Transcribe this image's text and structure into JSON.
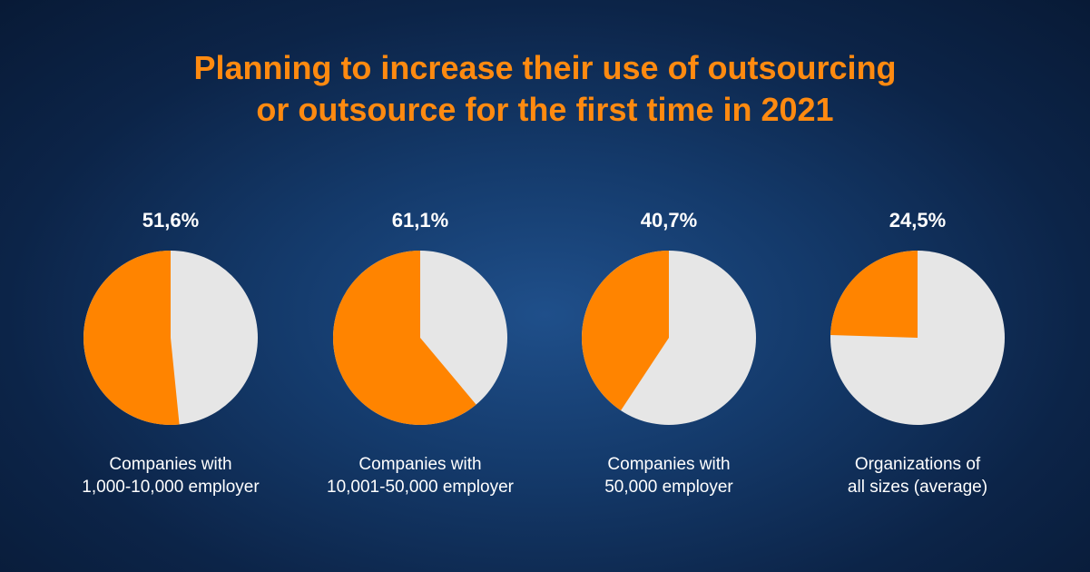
{
  "title": {
    "line1": "Planning to increase their use of outsourcing",
    "line2": "or outsource for the first time in 2021"
  },
  "colors": {
    "highlight": "#ff8400",
    "remainder": "#e6e6e6"
  },
  "chart_data": [
    {
      "type": "pie",
      "title": "51,6%",
      "value": 51.6,
      "label_line1": "Companies with",
      "label_line2": "1,000-10,000 employer"
    },
    {
      "type": "pie",
      "title": "61,1%",
      "value": 61.1,
      "label_line1": "Companies with",
      "label_line2": "10,001-50,000 employer"
    },
    {
      "type": "pie",
      "title": "40,7%",
      "value": 40.7,
      "label_line1": "Companies with",
      "label_line2": "50,000 employer"
    },
    {
      "type": "pie",
      "title": "24,5%",
      "value": 24.5,
      "label_line1": "Organizations of",
      "label_line2": "all sizes (average)"
    }
  ]
}
